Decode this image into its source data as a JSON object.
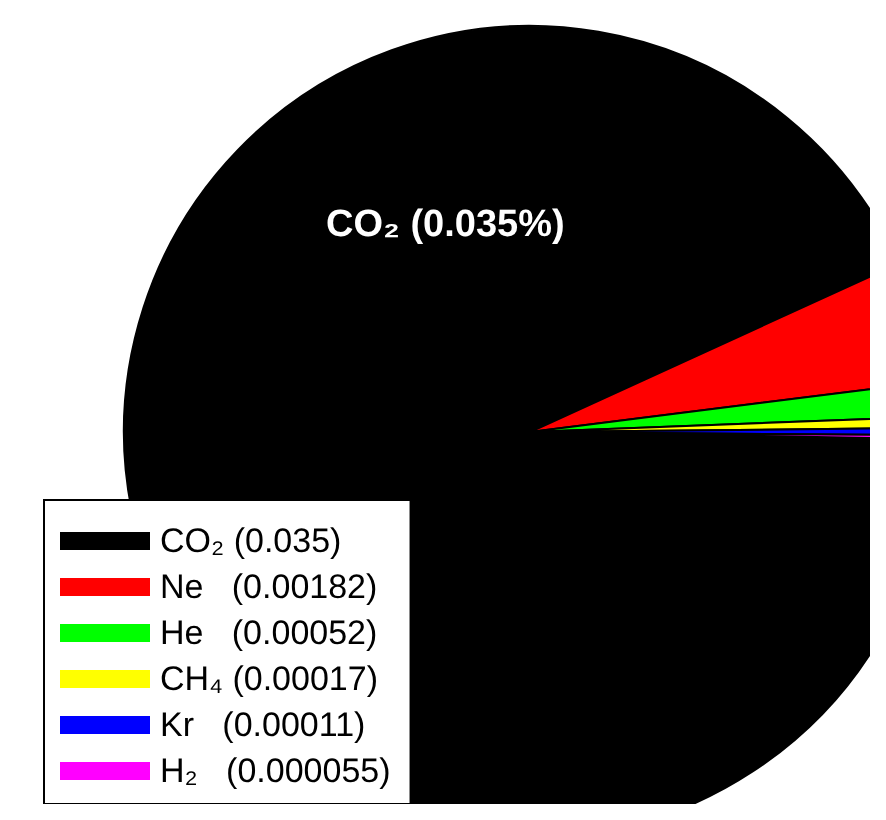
{
  "chart_data": {
    "type": "pie",
    "categories": [
      "CO₂ (0.035)",
      "Ne   (0.00182)",
      "He   (0.00052)",
      "CH₄ (0.00017)",
      "Kr   (0.00011)",
      "H₂   (0.000055)"
    ],
    "values": [
      0.035,
      0.00182,
      0.00052,
      0.00017,
      0.00011,
      5.5e-05
    ],
    "colors": [
      "#000000",
      "#ff0000",
      "#00ff00",
      "#ffff00",
      "#0000ff",
      "#ff00ff"
    ],
    "legend": "bottom left",
    "annotations": [
      "CO₂ (0.035%)"
    ]
  }
}
